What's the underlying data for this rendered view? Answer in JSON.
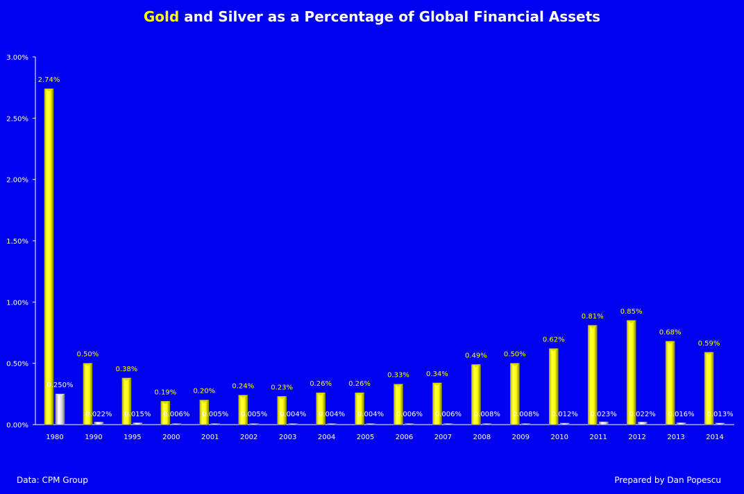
{
  "title": {
    "highlight": "Gold",
    "rest": " and Silver as a Percentage of Global Financial Assets"
  },
  "footer": {
    "source": "Data: CPM Group",
    "credit": "Prepared by Dan Popescu"
  },
  "colors": {
    "background": "#0000f0",
    "gold": "#ffff00",
    "silver": "#d0d0e0",
    "text": "#ffffff"
  },
  "chart_data": {
    "type": "bar",
    "title": "Gold and Silver as a Percentage of Global Financial Assets",
    "xlabel": "",
    "ylabel": "",
    "ylim": [
      0,
      3.0
    ],
    "yticks": [
      "0.00%",
      "0.50%",
      "1.00%",
      "1.50%",
      "2.00%",
      "2.50%",
      "3.00%"
    ],
    "grid": false,
    "legend": null,
    "categories": [
      "1980",
      "1990",
      "1995",
      "2000",
      "2001",
      "2002",
      "2003",
      "2004",
      "2005",
      "2006",
      "2007",
      "2008",
      "2009",
      "2010",
      "2011",
      "2012",
      "2013",
      "2014"
    ],
    "series": [
      {
        "name": "Gold",
        "color": "#ffff00",
        "values": [
          2.74,
          0.5,
          0.38,
          0.19,
          0.2,
          0.24,
          0.23,
          0.26,
          0.26,
          0.33,
          0.34,
          0.49,
          0.5,
          0.62,
          0.81,
          0.85,
          0.68,
          0.59
        ],
        "labels": [
          "2.74%",
          "0.50%",
          "0.38%",
          "0.19%",
          "0.20%",
          "0.24%",
          "0.23%",
          "0.26%",
          "0.26%",
          "0.33%",
          "0.34%",
          "0.49%",
          "0.50%",
          "0.62%",
          "0.81%",
          "0.85%",
          "0.68%",
          "0.59%"
        ]
      },
      {
        "name": "Silver",
        "color": "#d0d0e0",
        "values": [
          0.25,
          0.022,
          0.015,
          0.006,
          0.005,
          0.005,
          0.004,
          0.004,
          0.004,
          0.006,
          0.006,
          0.008,
          0.008,
          0.012,
          0.023,
          0.022,
          0.016,
          0.013
        ],
        "labels": [
          "0.250%",
          "0.022%",
          "0.015%",
          "0.006%",
          "0.005%",
          "0.005%",
          "0.004%",
          "0.004%",
          "0.004%",
          "0.006%",
          "0.006%",
          "0.008%",
          "0.008%",
          "0.012%",
          "0.023%",
          "0.022%",
          "0.016%",
          "0.013%"
        ]
      }
    ],
    "annotations": [
      "Data: CPM Group",
      "Prepared by Dan Popescu"
    ]
  }
}
